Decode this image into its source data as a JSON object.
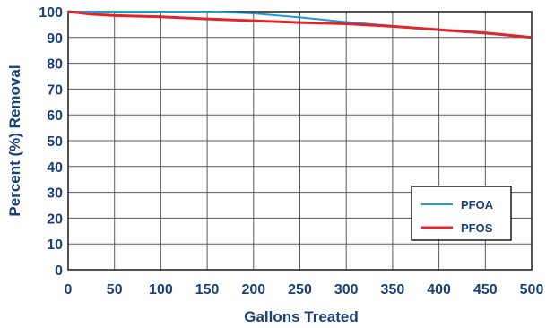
{
  "chart_data": {
    "type": "line",
    "xlabel": "Gallons Treated",
    "ylabel": "Percent (%) Removal",
    "xlim": [
      0,
      500
    ],
    "ylim": [
      0,
      100
    ],
    "xticks": [
      "0",
      "50",
      "100",
      "150",
      "200",
      "250",
      "300",
      "350",
      "400",
      "450",
      "500"
    ],
    "yticks": [
      "0",
      "10",
      "20",
      "30",
      "40",
      "50",
      "60",
      "70",
      "80",
      "90",
      "100"
    ],
    "grid": true,
    "legend_position": "bottom-right",
    "series": [
      {
        "name": "PFOA",
        "color": "#1a9bd7",
        "points": [
          [
            0,
            100
          ],
          [
            50,
            100
          ],
          [
            100,
            100
          ],
          [
            150,
            100
          ],
          [
            200,
            99.3
          ],
          [
            250,
            97.8
          ],
          [
            300,
            96
          ],
          [
            350,
            94.5
          ],
          [
            400,
            92.8
          ],
          [
            450,
            91.5
          ],
          [
            500,
            90
          ]
        ]
      },
      {
        "name": "PFOS",
        "color": "#e0252b",
        "points": [
          [
            0,
            100
          ],
          [
            25,
            99
          ],
          [
            50,
            98.5
          ],
          [
            100,
            98
          ],
          [
            150,
            97.2
          ],
          [
            200,
            96.5
          ],
          [
            250,
            95.8
          ],
          [
            300,
            95.3
          ],
          [
            350,
            94.3
          ],
          [
            400,
            93
          ],
          [
            450,
            91.8
          ],
          [
            500,
            90
          ]
        ]
      }
    ]
  }
}
